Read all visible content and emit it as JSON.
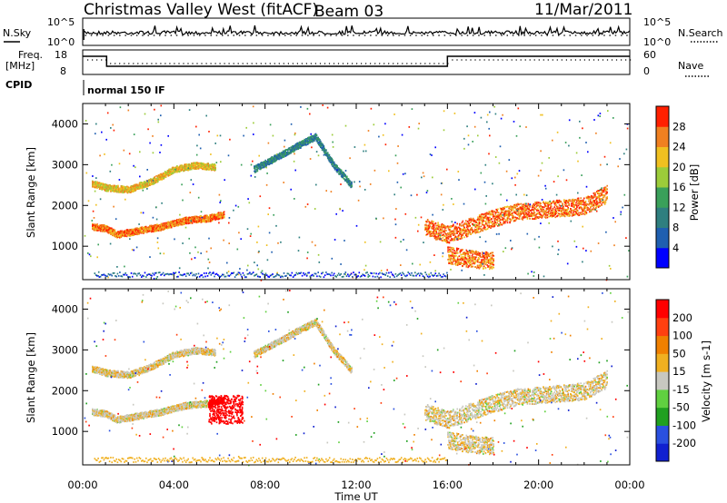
{
  "header": {
    "title": "Christmas Valley West (fitACF)",
    "beam": "Beam 03",
    "date": "11/Mar/2011"
  },
  "panels": {
    "nsky_label": "N.Sky",
    "nsky_ticks": [
      "10^5",
      "10^0"
    ],
    "nsearch_label": "N.Search",
    "nsearch_ticks": [
      "10^5",
      "10^0"
    ],
    "freq_label_1": "Freq.",
    "freq_label_2": "[MHz]",
    "freq_ticks": [
      "18",
      "8"
    ],
    "nave_label": "Nave",
    "nave_ticks": [
      "60",
      "0"
    ],
    "cpid_label": "CPID",
    "cpid_value": "normal 150 IF"
  },
  "chart_data": [
    {
      "type": "heatmap",
      "name": "power",
      "ylabel": "Slant Range [km]",
      "ylim": [
        180,
        4500
      ],
      "yticks": [
        "1000",
        "2000",
        "3000",
        "4000"
      ],
      "xlim": [
        "00:00",
        "24:00"
      ],
      "colorbar_label": "Power [dB]",
      "colorbar_ticks": [
        "4",
        "8",
        "12",
        "16",
        "20",
        "24",
        "28"
      ],
      "colorbar_colors": [
        "#0000ff",
        "#1f5fb0",
        "#2f7f7f",
        "#3aa05a",
        "#9ccc3a",
        "#f0c020",
        "#f08020",
        "#ff2000"
      ],
      "bands": [
        {
          "t": [
            0.4,
            1.0,
            1.5,
            2.5,
            3.5,
            4.5,
            5.5,
            6.2
          ],
          "r": [
            1500,
            1450,
            1300,
            1400,
            1500,
            1650,
            1700,
            1800
          ],
          "level": 26
        },
        {
          "t": [
            0.4,
            1.0,
            2.0,
            3.0,
            4.0,
            5.0,
            5.8
          ],
          "r": [
            2550,
            2450,
            2400,
            2600,
            2900,
            3000,
            2950
          ],
          "level": 22
        },
        {
          "t": [
            7.5,
            8.5,
            9.5,
            10.2,
            11.0,
            11.8
          ],
          "r": [
            2900,
            3200,
            3500,
            3700,
            3000,
            2500
          ],
          "level": 10
        },
        {
          "t": [
            15.0,
            16.0,
            17.0,
            18.0,
            19.0,
            20.0,
            21.0,
            22.0,
            23.0
          ],
          "r": [
            1500,
            1300,
            1500,
            1700,
            1850,
            1900,
            1950,
            2000,
            2300
          ],
          "level": 27
        },
        {
          "t": [
            16.0,
            17.0,
            18.0
          ],
          "r": [
            800,
            700,
            650
          ],
          "level": 26
        }
      ]
    },
    {
      "type": "heatmap",
      "name": "velocity",
      "ylabel": "Slant Range [km]",
      "xlabel": "Time UT",
      "ylim": [
        180,
        4500
      ],
      "yticks": [
        "1000",
        "2000",
        "3000",
        "4000"
      ],
      "xticks": [
        "00:00",
        "04:00",
        "08:00",
        "12:00",
        "16:00",
        "20:00",
        "00:00"
      ],
      "colorbar_label": "Velocity [m s-1]",
      "colorbar_ticks": [
        "200",
        "100",
        "50",
        "15",
        "-15",
        "-50",
        "-100",
        "-200"
      ],
      "colorbar_colors": [
        "#1020d0",
        "#2a50e0",
        "#20a020",
        "#60d040",
        "#c8c8c0",
        "#f0b020",
        "#f08000",
        "#ff4010",
        "#ff0000"
      ]
    }
  ]
}
